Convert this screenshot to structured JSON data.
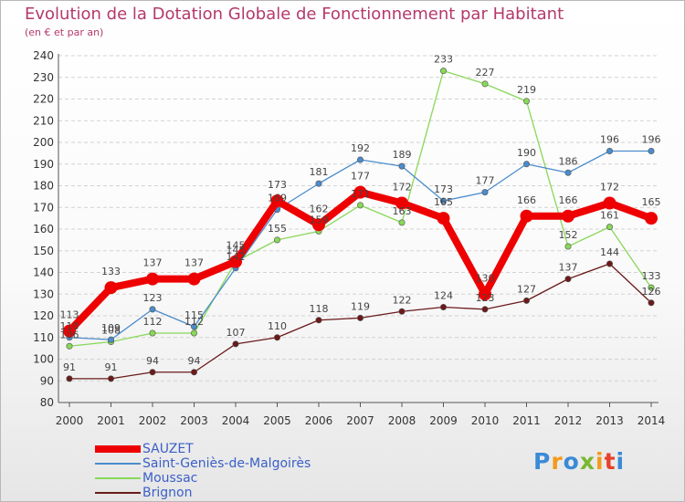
{
  "title": "Evolution de la Dotation Globale de Fonctionnement par Habitant",
  "subtitle": "(en € et par an)",
  "chart_data": {
    "type": "line",
    "x": [
      "2000",
      "2001",
      "2002",
      "2003",
      "2004",
      "2005",
      "2006",
      "2007",
      "2008",
      "2009",
      "2010",
      "2011",
      "2012",
      "2013",
      "2014"
    ],
    "ylim": [
      80,
      240
    ],
    "yticks": [
      80,
      90,
      100,
      110,
      120,
      130,
      140,
      150,
      160,
      170,
      180,
      190,
      200,
      210,
      220,
      230,
      240
    ],
    "grid": "horizontal-dashed",
    "legend_position": "bottom-left",
    "series": [
      {
        "name": "Brignon",
        "color": "#6b1a1a",
        "values": [
          91,
          91,
          94,
          94,
          107,
          110,
          118,
          119,
          122,
          124,
          123,
          127,
          137,
          144,
          126
        ]
      },
      {
        "name": "Moussac",
        "color": "#88d858",
        "values": [
          106,
          108,
          112,
          112,
          145,
          155,
          159,
          171,
          163,
          233,
          227,
          219,
          152,
          161,
          133
        ]
      },
      {
        "name": "Saint-Geniès-de-Malgoirès",
        "color": "#4a8ccc",
        "values": [
          110,
          109,
          123,
          115,
          142,
          169,
          181,
          192,
          189,
          173,
          177,
          190,
          186,
          196,
          196
        ]
      },
      {
        "name": "SAUZET",
        "color": "#ee0000",
        "values": [
          113,
          133,
          137,
          137,
          145,
          173,
          162,
          177,
          172,
          165,
          130,
          166,
          166,
          172,
          165
        ]
      }
    ]
  },
  "legend": {
    "items": [
      {
        "label": "SAUZET",
        "color": "#ee0000"
      },
      {
        "label": "Saint-Geniès-de-Malgoirès",
        "color": "#4a8ccc"
      },
      {
        "label": "Moussac",
        "color": "#88d858"
      },
      {
        "label": "Brignon",
        "color": "#6b1a1a"
      }
    ]
  },
  "logo": {
    "text": "Proxiti",
    "colors": [
      "#3a8ad8",
      "#f39a1c",
      "#3a8ad8",
      "#7ab830",
      "#f39a1c",
      "#e8402a",
      "#3a8ad8"
    ]
  }
}
